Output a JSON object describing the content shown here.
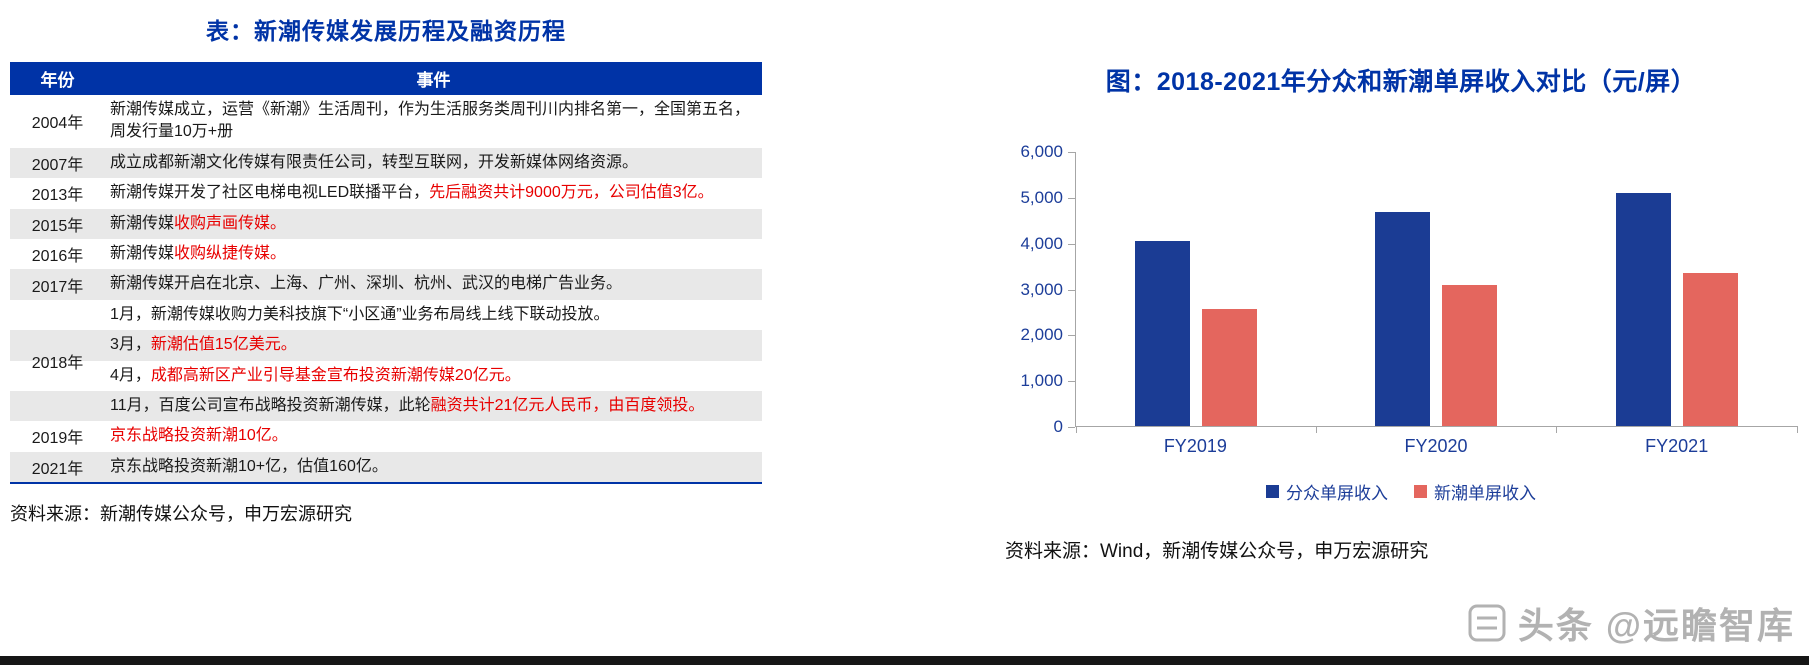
{
  "left": {
    "title": "表：新潮传媒发展历程及融资历程",
    "table": {
      "headers": [
        "年份",
        "事件"
      ],
      "groups": [
        {
          "year": "2004年",
          "rows": [
            [
              {
                "t": "新潮传媒成立，运营《新潮》生活周刊，作为生活服务类周刊川内排名第一，全国第五名，周发行量10万+册"
              }
            ]
          ]
        },
        {
          "year": "2007年",
          "rows": [
            [
              {
                "t": "成立成都新潮文化传媒有限责任公司，转型互联网，开发新媒体网络资源。"
              }
            ]
          ]
        },
        {
          "year": "2013年",
          "rows": [
            [
              {
                "t": "新潮传媒开发了社区电梯电视LED联播平台，"
              },
              {
                "t": "先后融资共计9000万元，公司估值3亿。",
                "red": true
              }
            ]
          ]
        },
        {
          "year": "2015年",
          "rows": [
            [
              {
                "t": "新潮传媒"
              },
              {
                "t": "收购声画传媒。",
                "red": true
              }
            ]
          ]
        },
        {
          "year": "2016年",
          "rows": [
            [
              {
                "t": "新潮传媒"
              },
              {
                "t": "收购纵捷传媒。",
                "red": true
              }
            ]
          ]
        },
        {
          "year": "2017年",
          "rows": [
            [
              {
                "t": "新潮传媒开启在北京、上海、广州、深圳、杭州、武汉的电梯广告业务。"
              }
            ]
          ]
        },
        {
          "year": "2018年",
          "rows": [
            [
              {
                "t": "1月，新潮传媒收购力美科技旗下“小区通”业务布局线上线下联动投放。"
              }
            ],
            [
              {
                "t": "3月，"
              },
              {
                "t": "新潮估值15亿美元。",
                "red": true
              }
            ],
            [
              {
                "t": "4月，"
              },
              {
                "t": "成都高新区产业引导基金宣布投资新潮传媒20亿元。",
                "red": true
              }
            ],
            [
              {
                "t": "11月，百度公司宣布战略投资新潮传媒，此轮"
              },
              {
                "t": "融资共计21亿元人民币，由百度领投。",
                "red": true
              }
            ]
          ]
        },
        {
          "year": "2019年",
          "rows": [
            [
              {
                "t": "京东战略投资新潮10亿。",
                "red": true
              }
            ]
          ]
        },
        {
          "year": "2021年",
          "rows": [
            [
              {
                "t": "京东战略投资新潮10+亿，估值160亿。"
              }
            ]
          ]
        }
      ]
    },
    "source": "资料来源：新潮传媒公众号，申万宏源研究"
  },
  "right": {
    "title": "图：2018-2021年分众和新潮单屏收入对比（元/屏）",
    "source": "资料来源：Wind，新潮传媒公众号，申万宏源研究"
  },
  "chart_data": {
    "type": "bar",
    "title": "图：2018-2021年分众和新潮单屏收入对比（元/屏）",
    "categories": [
      "FY2019",
      "FY2020",
      "FY2021"
    ],
    "series": [
      {
        "name": "分众单屏收入",
        "color": "#1B3C94",
        "values": [
          4030,
          4680,
          5080
        ]
      },
      {
        "name": "新潮单屏收入",
        "color": "#E4665E",
        "values": [
          2560,
          3070,
          3330
        ]
      }
    ],
    "ylabel": "",
    "xlabel": "",
    "ylim": [
      0,
      6000
    ],
    "yticks": [
      0,
      1000,
      2000,
      3000,
      4000,
      5000,
      6000
    ],
    "ytick_labels": [
      "0",
      "1,000",
      "2,000",
      "3,000",
      "4,000",
      "5,000",
      "6,000"
    ],
    "grid": false,
    "legend_position": "bottom"
  },
  "watermark": {
    "text_primary": "头条",
    "text_secondary": "@远瞻智库"
  },
  "colors": {
    "brand_blue": "#0033A6",
    "axis_text_blue": "#1C3D99",
    "bar_blue": "#1B3C94",
    "bar_red": "#E4665E",
    "highlight_red": "#E80000",
    "row_shade": "#E8E8E8",
    "watermark_gray": "#9F9F9F"
  }
}
